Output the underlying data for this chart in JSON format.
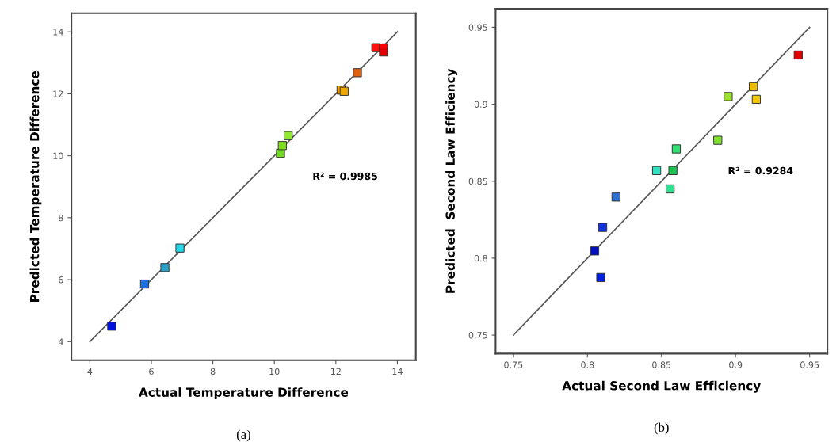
{
  "chart_data": [
    {
      "type": "scatter",
      "xlabel": "Actual Temperature Difference",
      "ylabel": "Predicted Temperature Difference",
      "annotations": [
        "R² = 0.9985",
        "(a)"
      ],
      "xlim": [
        3.4,
        14.6
      ],
      "ylim": [
        3.4,
        14.6
      ],
      "xticks": [
        4,
        6,
        8,
        10,
        12,
        14
      ],
      "yticks": [
        4,
        6,
        8,
        10,
        12,
        14
      ],
      "grid": false,
      "marker": "square",
      "series": [
        {
          "type": "line",
          "color": "#555555",
          "x": [
            4,
            14
          ],
          "values": [
            4,
            14
          ],
          "marker": "none",
          "line_style": "solid"
        },
        {
          "x": [
            4.71,
            5.78,
            6.44,
            6.93,
            10.2,
            10.26,
            10.45,
            12.17,
            12.27,
            12.7,
            13.3,
            13.55,
            13.55
          ],
          "values": [
            4.5,
            5.86,
            6.39,
            7.02,
            10.08,
            10.33,
            10.65,
            12.12,
            12.08,
            12.68,
            13.49,
            13.48,
            13.35
          ],
          "colors": [
            "#0010e0",
            "#1e6fe0",
            "#2aa0c8",
            "#20d8e8",
            "#70d820",
            "#80e020",
            "#90e830",
            "#f0a000",
            "#f0a800",
            "#e06010",
            "#ff1010",
            "#ff0000",
            "#e00000"
          ]
        }
      ]
    },
    {
      "type": "scatter",
      "xlabel": "Actual Second Law Efficiency",
      "ylabel": "Predicted  Second Law Efficiency",
      "annotations": [
        "R² = 0.9284",
        "(b)"
      ],
      "xlim": [
        0.738,
        0.962
      ],
      "ylim": [
        0.738,
        0.962
      ],
      "xticks": [
        0.75,
        0.8,
        0.85,
        0.9,
        0.95
      ],
      "yticks": [
        0.75,
        0.8,
        0.85,
        0.9,
        0.95
      ],
      "grid": false,
      "marker": "square",
      "series": [
        {
          "type": "line",
          "color": "#555555",
          "x": [
            0.75,
            0.95
          ],
          "values": [
            0.75,
            0.95
          ],
          "marker": "none",
          "line_style": "solid"
        },
        {
          "x": [
            0.9423,
            0.912,
            0.914,
            0.895,
            0.888,
            0.86,
            0.8467,
            0.8577,
            0.8558,
            0.8193,
            0.8103,
            0.8049,
            0.809
          ],
          "values": [
            0.932,
            0.9114,
            0.9032,
            0.905,
            0.8766,
            0.871,
            0.8569,
            0.8569,
            0.845,
            0.8397,
            0.82,
            0.8047,
            0.7874
          ],
          "colors": [
            "#e00000",
            "#e8c000",
            "#f0c800",
            "#a0e030",
            "#80e030",
            "#30e070",
            "#30e0c0",
            "#20c050",
            "#30e090",
            "#3070d0",
            "#1030e0",
            "#0010c0",
            "#0020e0"
          ]
        }
      ]
    }
  ]
}
